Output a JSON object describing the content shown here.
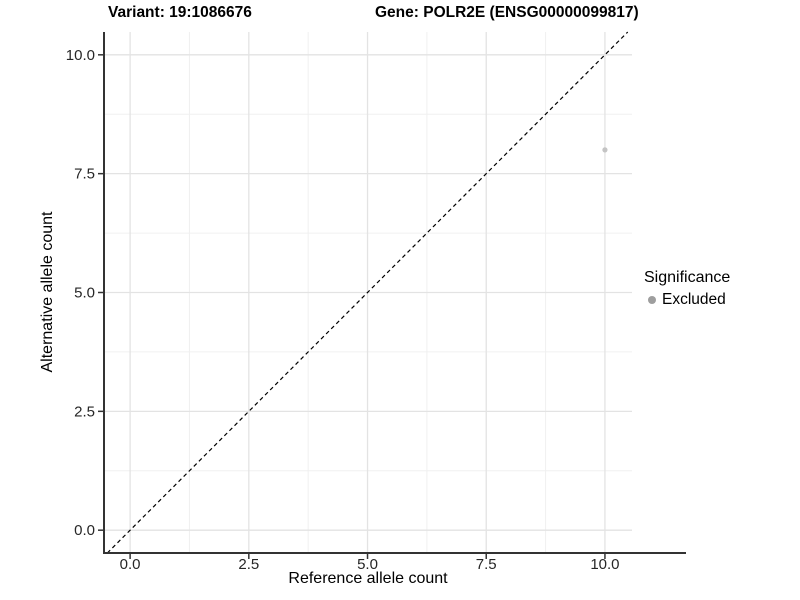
{
  "chart_data": {
    "type": "scatter",
    "titles": {
      "left": "Variant: 19:1086676",
      "right": "Gene: POLR2E (ENSG00000099817)"
    },
    "xlabel": "Reference allele count",
    "ylabel": "Alternative allele count",
    "x_ticks": [
      0,
      2.5,
      5,
      7.5,
      10
    ],
    "x_tick_labels": [
      "0.0",
      "2.5",
      "5.0",
      "7.5",
      "10.0"
    ],
    "y_ticks": [
      0,
      2.5,
      5,
      7.5,
      10
    ],
    "y_tick_labels": [
      "0.0",
      "2.5",
      "5.0",
      "7.5",
      "10.0"
    ],
    "x_minor": [
      1.25,
      3.75,
      6.25,
      8.75
    ],
    "y_minor": [
      1.25,
      3.75,
      6.25,
      8.75
    ],
    "xlim": [
      -0.55,
      10.57
    ],
    "ylim": [
      -0.48,
      10.48
    ],
    "grid": "major+minor",
    "points": [
      {
        "x": 10,
        "y": 8,
        "significance": "Excluded"
      }
    ],
    "identity_line": {
      "slope": 1,
      "intercept": 0,
      "style": "dashed"
    },
    "legend": {
      "title": "Significance",
      "position": "right",
      "items": [
        {
          "label": "Excluded",
          "color": "#9e9e9e"
        }
      ]
    },
    "colors": {
      "point": "#c4c4c4",
      "grid_major": "#e3e3e3",
      "grid_minor": "#f0f0f0",
      "axis_line": "#333333",
      "tick_label": "#262626",
      "identity_line": "#000000",
      "background": "#ffffff"
    }
  }
}
